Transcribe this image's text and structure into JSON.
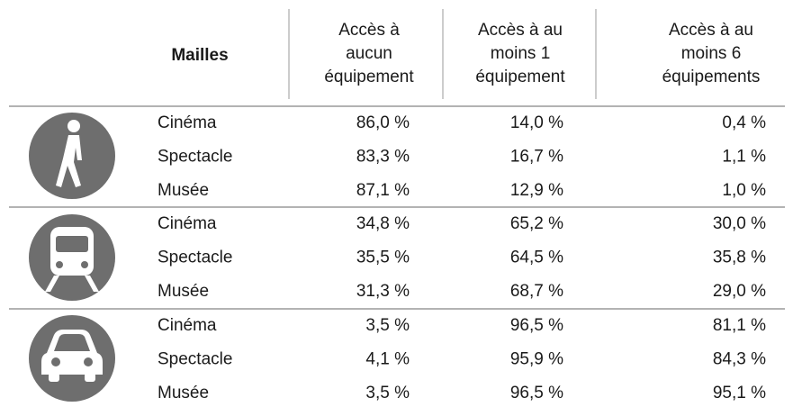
{
  "header": {
    "mailles": "Mailles",
    "columns": [
      [
        "Accès à",
        "aucun",
        "équipement"
      ],
      [
        "Accès à au",
        "moins 1",
        "équipement"
      ],
      [
        "Accès à au",
        "moins 6",
        "équipements"
      ]
    ]
  },
  "groups": [
    {
      "rows": [
        {
          "label": "Cinéma",
          "values": [
            "86,0 %",
            "14,0 %",
            "0,4 %"
          ]
        },
        {
          "label": "Spectacle",
          "values": [
            "83,3 %",
            "16,7 %",
            "1,1 %"
          ]
        },
        {
          "label": "Musée",
          "values": [
            "87,1 %",
            "12,9 %",
            "1,0 %"
          ]
        }
      ]
    },
    {
      "rows": [
        {
          "label": "Cinéma",
          "values": [
            "34,8 %",
            "65,2 %",
            "30,0 %"
          ]
        },
        {
          "label": "Spectacle",
          "values": [
            "35,5 %",
            "64,5 %",
            "35,8 %"
          ]
        },
        {
          "label": "Musée",
          "values": [
            "31,3 %",
            "68,7 %",
            "29,0 %"
          ]
        }
      ]
    },
    {
      "rows": [
        {
          "label": "Cinéma",
          "values": [
            "3,5 %",
            "96,5 %",
            "81,1 %"
          ]
        },
        {
          "label": "Spectacle",
          "values": [
            "4,1 %",
            "95,9 %",
            "84,3 %"
          ]
        },
        {
          "label": "Musée",
          "values": [
            "3,5 %",
            "96,5 %",
            "95,1 %"
          ]
        }
      ]
    }
  ]
}
